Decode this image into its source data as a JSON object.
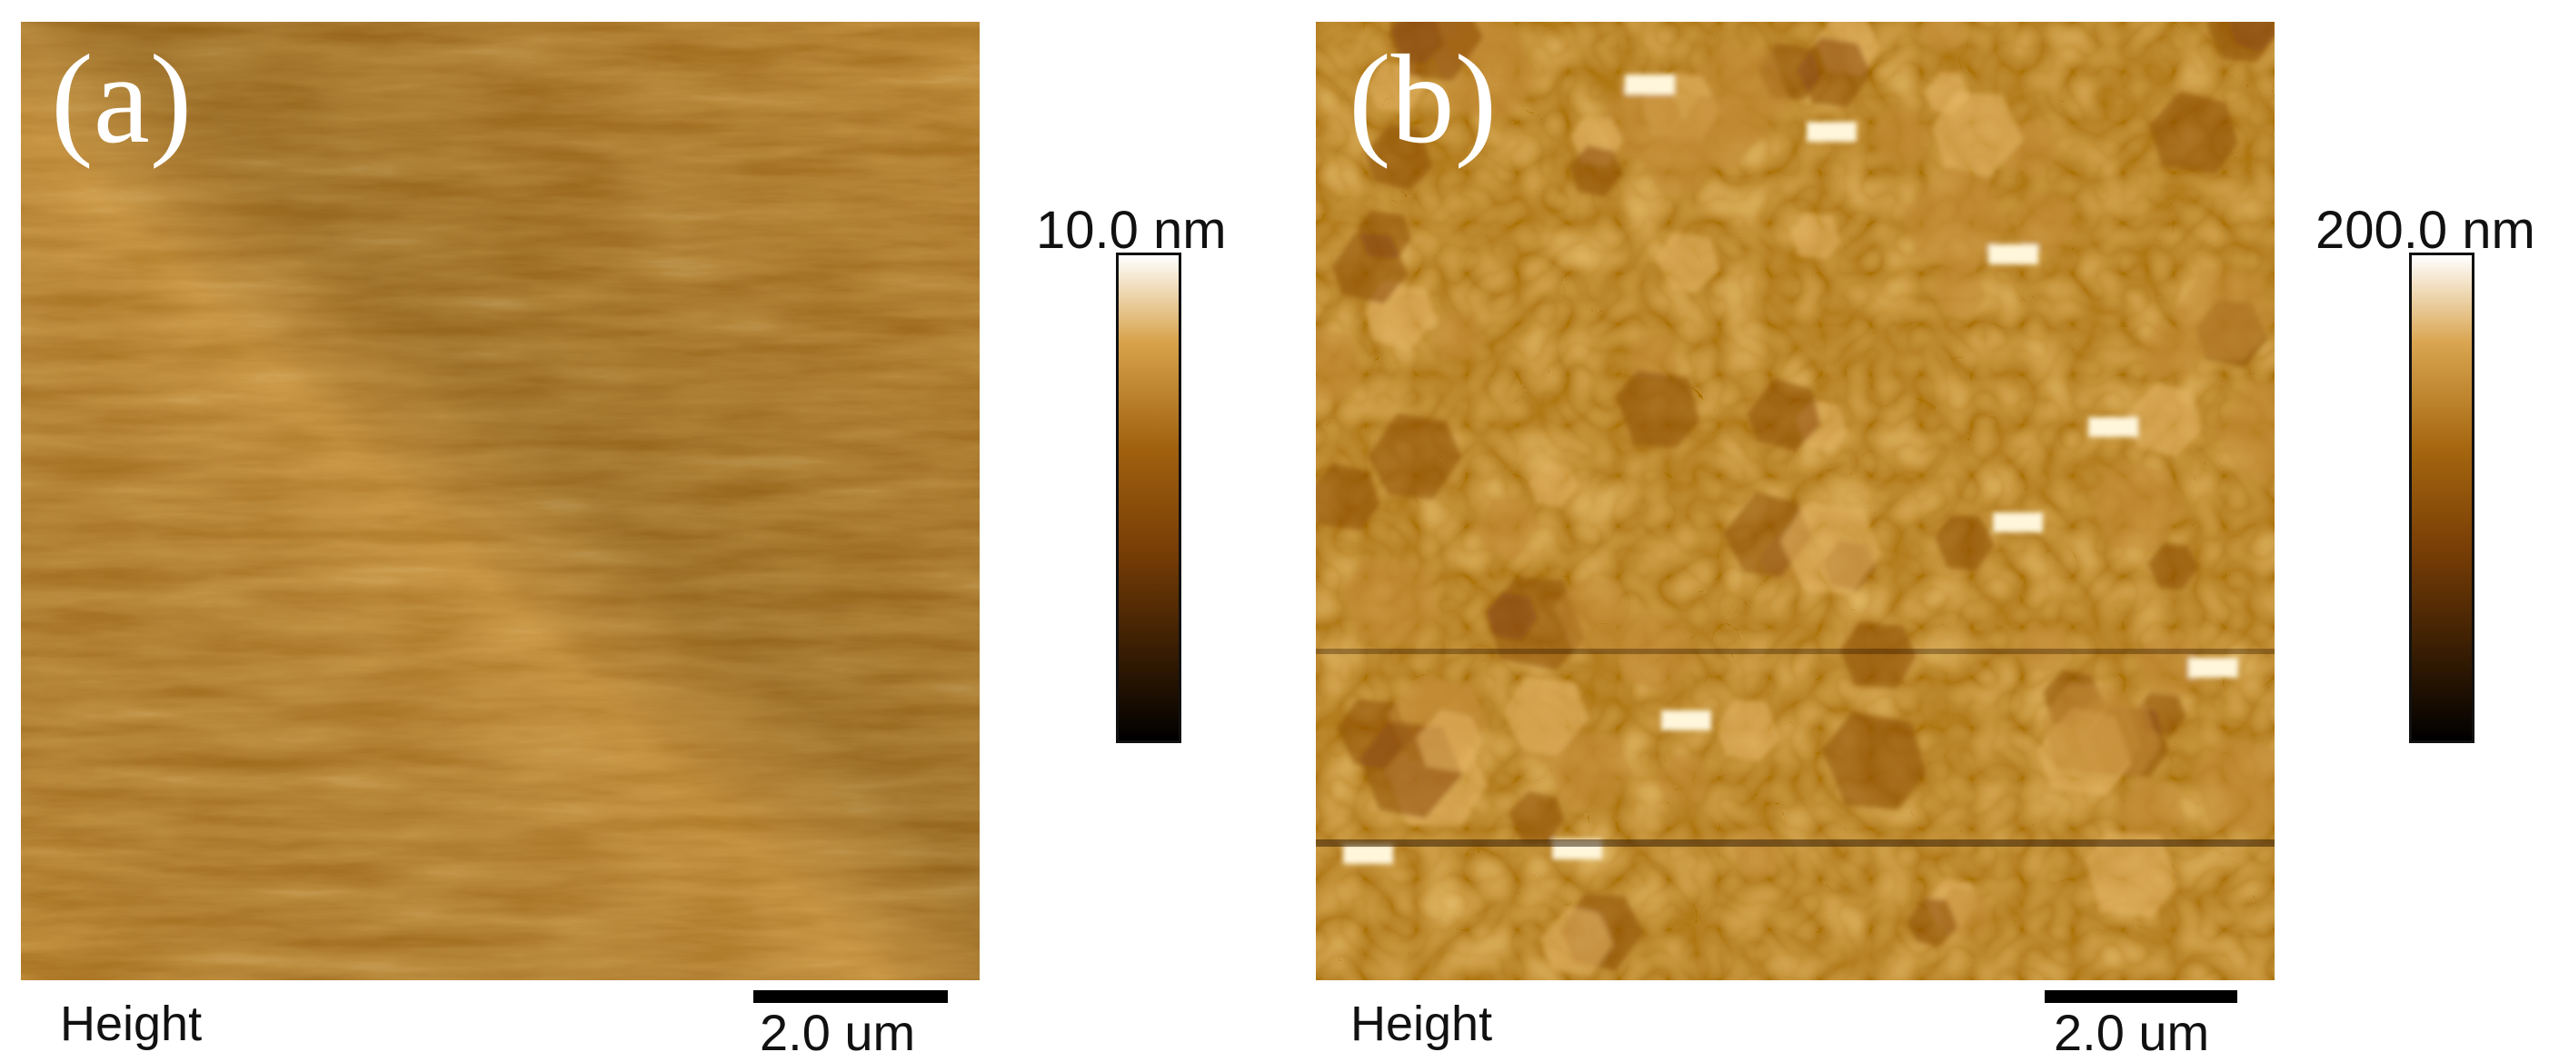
{
  "panels": [
    {
      "label": "(a)",
      "colorbar_max": "10.0 nm",
      "channel": "Height",
      "scale_bar": "2.0 um",
      "colors": {
        "dark": "#000000",
        "mid": "#7a3f06",
        "base": "#a0610f",
        "light": "#d7a24a",
        "max": "#ffffff"
      }
    },
    {
      "label": "(b)",
      "colorbar_max": "200.0 nm",
      "channel": "Height",
      "scale_bar": "2.0 um",
      "colors": {
        "dark": "#000000",
        "mid": "#7a3f06",
        "base": "#a5660f",
        "light": "#d9a550",
        "max": "#ffffff"
      }
    }
  ]
}
